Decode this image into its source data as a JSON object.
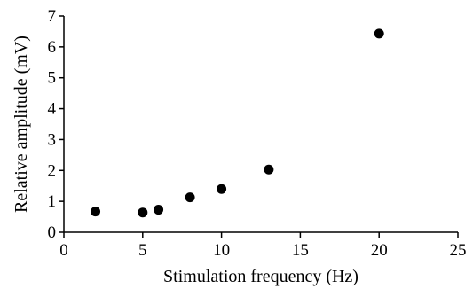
{
  "chart_data": {
    "type": "scatter",
    "xlabel": "Stimulation frequency (Hz)",
    "ylabel": "Relative amplitude  (mV)",
    "xlim": [
      0,
      25
    ],
    "ylim": [
      0,
      7
    ],
    "x_ticks": [
      "0",
      "5",
      "10",
      "15",
      "20",
      "25"
    ],
    "y_ticks": [
      "0",
      "1",
      "2",
      "3",
      "4",
      "5",
      "6",
      "7"
    ],
    "grid": false,
    "series": [
      {
        "points": [
          {
            "x": 2,
            "y": 0.67
          },
          {
            "x": 5,
            "y": 0.64
          },
          {
            "x": 6,
            "y": 0.73
          },
          {
            "x": 8,
            "y": 1.13
          },
          {
            "x": 10,
            "y": 1.4
          },
          {
            "x": 13,
            "y": 2.03
          },
          {
            "x": 20,
            "y": 6.43
          }
        ]
      }
    ]
  }
}
